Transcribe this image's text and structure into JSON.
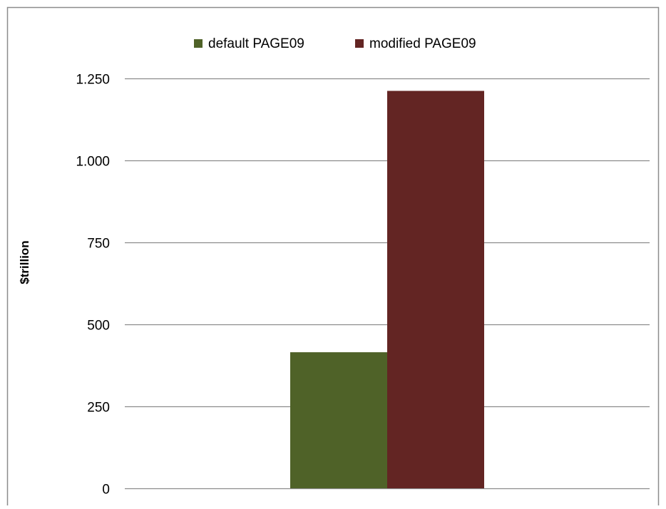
{
  "chart_data": {
    "type": "bar",
    "categories": [
      ""
    ],
    "series": [
      {
        "name": "default PAGE09",
        "values": [
          415
        ],
        "color": "#4f6228"
      },
      {
        "name": "modified PAGE09",
        "values": [
          1212
        ],
        "color": "#632523"
      }
    ],
    "title": "",
    "xlabel": "",
    "ylabel": "$trillion",
    "ylim": [
      0,
      1250
    ],
    "yticks": [
      0,
      250,
      500,
      750,
      1000,
      1250
    ],
    "ytick_labels": [
      "0",
      "250",
      "500",
      "750",
      "1.000",
      "1.250"
    ],
    "grid": true,
    "legend_position": "top-center",
    "colors": {
      "gridline": "#8c8c8c",
      "frame": "#8c8c8c",
      "text": "#000000"
    }
  }
}
